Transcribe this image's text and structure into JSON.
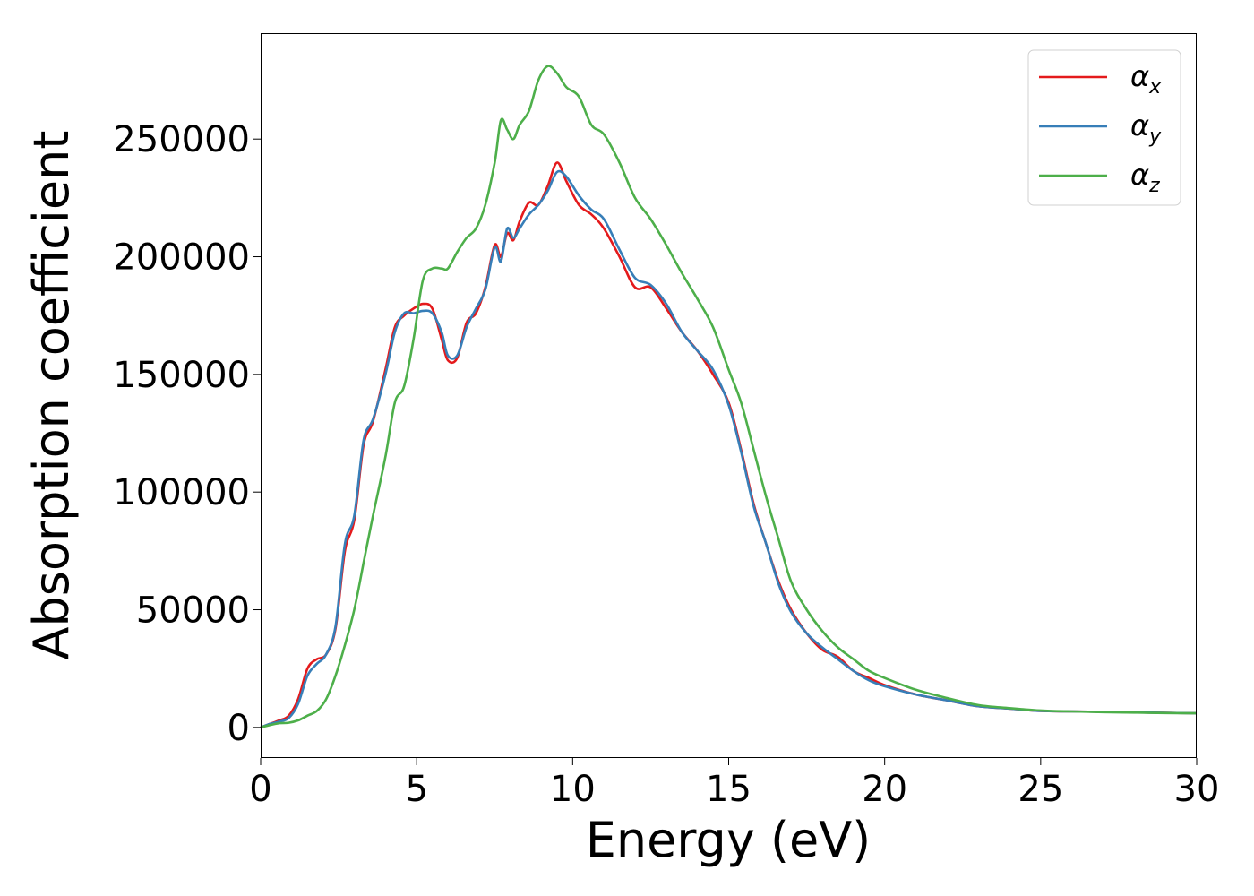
{
  "chart_data": {
    "type": "line",
    "title": "",
    "xlabel": "Energy (eV)",
    "ylabel": "Absorption coefficient",
    "xlim": [
      0,
      30
    ],
    "ylim": [
      -13000,
      295000
    ],
    "xticks": [
      0,
      5,
      10,
      15,
      20,
      25,
      30
    ],
    "xtick_labels": [
      "0",
      "5",
      "10",
      "15",
      "20",
      "25",
      "30"
    ],
    "yticks": [
      0,
      50000,
      100000,
      150000,
      200000,
      250000
    ],
    "ytick_labels": [
      "0",
      "50000",
      "100000",
      "150000",
      "200000",
      "250000"
    ],
    "grid": false,
    "legend_position": "top-right",
    "series": [
      {
        "name": "α_x",
        "symbol": "α",
        "subscript": "x",
        "color": "#e41a1c",
        "x": [
          0,
          0.3,
          0.6,
          0.9,
          1.2,
          1.5,
          1.8,
          2.1,
          2.4,
          2.7,
          3.0,
          3.3,
          3.6,
          4.0,
          4.3,
          4.6,
          4.9,
          5.2,
          5.5,
          5.8,
          6.0,
          6.3,
          6.6,
          6.9,
          7.2,
          7.5,
          7.7,
          7.9,
          8.1,
          8.3,
          8.6,
          8.9,
          9.2,
          9.5,
          9.8,
          10.2,
          10.6,
          11.0,
          11.5,
          12.0,
          12.5,
          13.0,
          13.5,
          14.0,
          14.5,
          15.0,
          15.4,
          15.8,
          16.2,
          16.6,
          17.0,
          17.5,
          18.0,
          18.5,
          19.0,
          19.5,
          20.0,
          21.0,
          22.0,
          23.0,
          24.0,
          25.0,
          26.0,
          27.0,
          28.0,
          29.0,
          30.0
        ],
        "values": [
          0,
          1500,
          3000,
          5000,
          12000,
          25000,
          29000,
          31000,
          42000,
          75000,
          88000,
          120000,
          130000,
          152000,
          170000,
          175000,
          178000,
          180000,
          178000,
          165000,
          156000,
          157000,
          172000,
          176000,
          187000,
          205000,
          200000,
          210000,
          207000,
          215000,
          223000,
          222000,
          230000,
          240000,
          232000,
          222000,
          218000,
          212000,
          200000,
          187000,
          187000,
          178000,
          168000,
          160000,
          150000,
          138000,
          118000,
          95000,
          78000,
          62000,
          50000,
          40000,
          33000,
          30000,
          24000,
          21000,
          18000,
          14000,
          11500,
          9000,
          8000,
          7000,
          6800,
          6600,
          6400,
          6200,
          6000
        ]
      },
      {
        "name": "α_y",
        "symbol": "α",
        "subscript": "y",
        "color": "#377eb8",
        "x": [
          0,
          0.3,
          0.6,
          0.9,
          1.2,
          1.5,
          1.8,
          2.1,
          2.4,
          2.7,
          3.0,
          3.3,
          3.6,
          4.0,
          4.3,
          4.6,
          4.9,
          5.2,
          5.5,
          5.8,
          6.0,
          6.3,
          6.6,
          6.9,
          7.2,
          7.5,
          7.7,
          7.9,
          8.1,
          8.3,
          8.6,
          8.9,
          9.2,
          9.5,
          9.8,
          10.2,
          10.6,
          11.0,
          11.5,
          12.0,
          12.5,
          13.0,
          13.5,
          14.0,
          14.5,
          15.0,
          15.4,
          15.8,
          16.2,
          16.6,
          17.0,
          17.5,
          18.0,
          18.5,
          19.0,
          19.5,
          20.0,
          21.0,
          22.0,
          23.0,
          24.0,
          25.0,
          26.0,
          27.0,
          28.0,
          29.0,
          30.0
        ],
        "values": [
          0,
          1500,
          2500,
          4000,
          10000,
          22000,
          27000,
          31000,
          43000,
          78000,
          90000,
          122000,
          131000,
          150000,
          168000,
          176000,
          176000,
          177000,
          176000,
          168000,
          158000,
          158000,
          170000,
          178000,
          186000,
          204000,
          198000,
          212000,
          208000,
          212000,
          218000,
          222000,
          228000,
          236000,
          234000,
          226000,
          220000,
          216000,
          203000,
          191000,
          188000,
          180000,
          168000,
          160000,
          152000,
          137000,
          117000,
          94000,
          78000,
          61000,
          49000,
          40000,
          34000,
          29000,
          24000,
          20000,
          17500,
          14000,
          11500,
          9000,
          8000,
          7000,
          6800,
          6600,
          6400,
          6200,
          6000
        ]
      },
      {
        "name": "α_z",
        "symbol": "α",
        "subscript": "z",
        "color": "#4daf4a",
        "x": [
          0,
          0.3,
          0.6,
          0.9,
          1.2,
          1.5,
          1.8,
          2.1,
          2.4,
          2.7,
          3.0,
          3.3,
          3.6,
          4.0,
          4.3,
          4.6,
          4.9,
          5.2,
          5.5,
          5.8,
          6.0,
          6.3,
          6.6,
          6.9,
          7.2,
          7.5,
          7.7,
          7.9,
          8.1,
          8.3,
          8.6,
          8.9,
          9.2,
          9.5,
          9.8,
          10.2,
          10.6,
          11.0,
          11.5,
          12.0,
          12.5,
          13.0,
          13.5,
          14.0,
          14.5,
          15.0,
          15.4,
          15.8,
          16.2,
          16.6,
          17.0,
          17.5,
          18.0,
          18.5,
          19.0,
          19.5,
          20.0,
          21.0,
          22.0,
          23.0,
          24.0,
          25.0,
          26.0,
          27.0,
          28.0,
          29.0,
          30.0
        ],
        "values": [
          0,
          1000,
          1800,
          2000,
          3000,
          5000,
          7000,
          12000,
          22000,
          35000,
          50000,
          70000,
          90000,
          115000,
          138000,
          145000,
          165000,
          190000,
          195000,
          195000,
          195000,
          202000,
          208000,
          212000,
          222000,
          240000,
          258000,
          254000,
          250000,
          256000,
          262000,
          275000,
          281000,
          278000,
          272000,
          268000,
          256000,
          252000,
          240000,
          225000,
          216000,
          205000,
          193000,
          182000,
          170000,
          152000,
          138000,
          118000,
          98000,
          80000,
          62000,
          50000,
          41000,
          34000,
          29000,
          24000,
          21000,
          16000,
          12500,
          9500,
          8200,
          7200,
          6800,
          6500,
          6300,
          6100,
          6000
        ]
      }
    ]
  }
}
